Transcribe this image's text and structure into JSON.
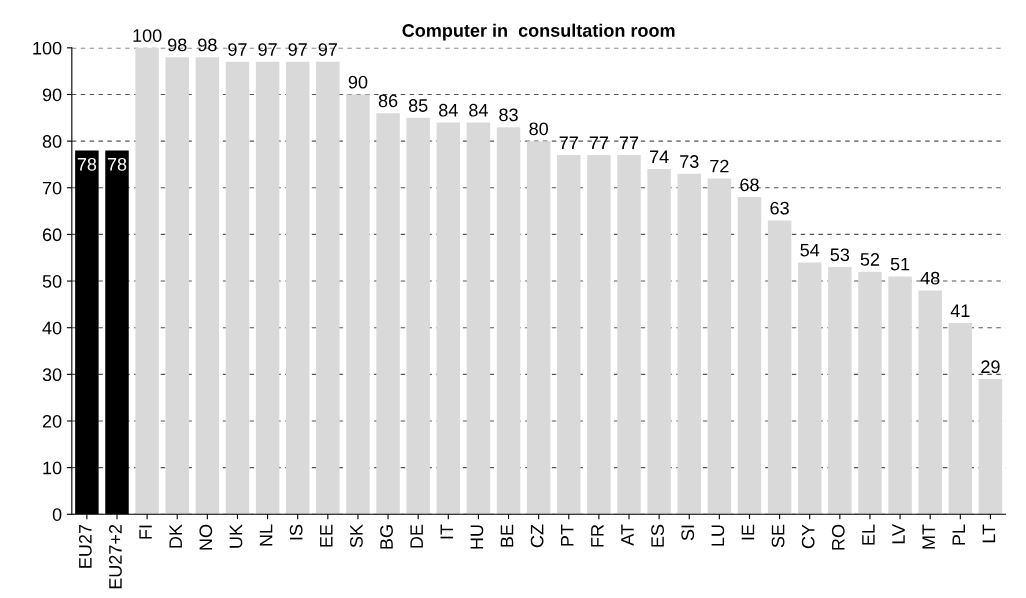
{
  "chart_data": {
    "type": "bar",
    "title": "Computer in  consultation room",
    "categories": [
      "EU27",
      "EU27+2",
      "FI",
      "DK",
      "NO",
      "UK",
      "NL",
      "IS",
      "EE",
      "SK",
      "BG",
      "DE",
      "IT",
      "HU",
      "BE",
      "CZ",
      "PT",
      "FR",
      "AT",
      "ES",
      "SI",
      "LU",
      "IE",
      "SE",
      "CY",
      "RO",
      "EL",
      "LV",
      "MT",
      "PL",
      "LT"
    ],
    "values": [
      78,
      78,
      100,
      98,
      98,
      97,
      97,
      97,
      97,
      90,
      86,
      85,
      84,
      84,
      83,
      80,
      77,
      77,
      77,
      74,
      73,
      72,
      68,
      63,
      54,
      53,
      52,
      51,
      48,
      41,
      29
    ],
    "colors": [
      "#000000",
      "#000000",
      "#d9d9d9",
      "#d9d9d9",
      "#d9d9d9",
      "#d9d9d9",
      "#d9d9d9",
      "#d9d9d9",
      "#d9d9d9",
      "#d9d9d9",
      "#d9d9d9",
      "#d9d9d9",
      "#d9d9d9",
      "#d9d9d9",
      "#d9d9d9",
      "#d9d9d9",
      "#d9d9d9",
      "#d9d9d9",
      "#d9d9d9",
      "#d9d9d9",
      "#d9d9d9",
      "#d9d9d9",
      "#d9d9d9",
      "#d9d9d9",
      "#d9d9d9",
      "#d9d9d9",
      "#d9d9d9",
      "#d9d9d9",
      "#d9d9d9",
      "#d9d9d9",
      "#d9d9d9"
    ],
    "ylim": [
      0,
      100
    ],
    "yticks": [
      0,
      10,
      20,
      30,
      40,
      50,
      60,
      70,
      80,
      90,
      100
    ],
    "grid": "y",
    "data_labels": true
  }
}
